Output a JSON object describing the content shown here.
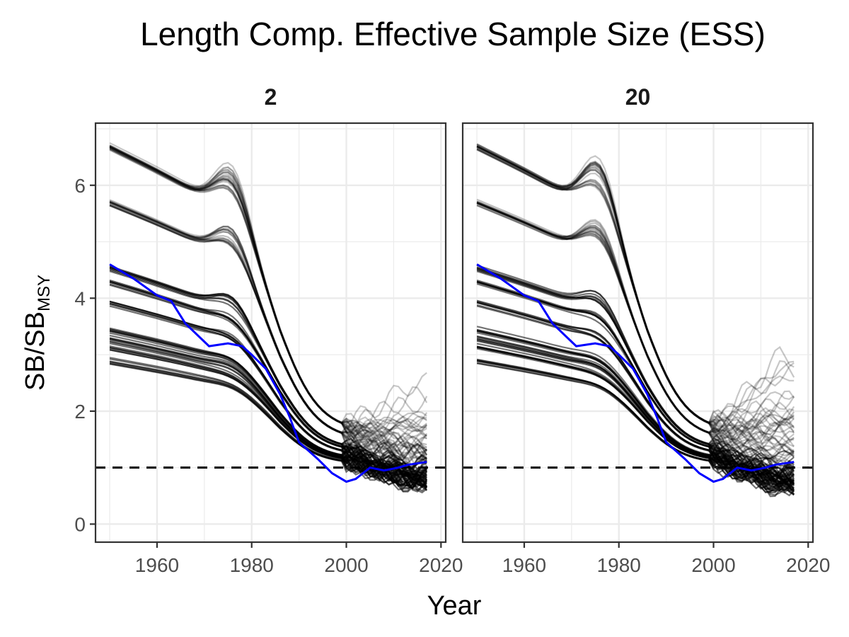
{
  "chart_data": {
    "type": "line",
    "title": "Length Comp. Effective Sample Size (ESS)",
    "xlabel": "Year",
    "ylabel": {
      "main": "SB/SB",
      "subscript": "MSY"
    },
    "xlim": [
      1947,
      2021
    ],
    "ylim": [
      -0.32,
      7.1
    ],
    "xticks": [
      1960,
      1980,
      2000,
      2020
    ],
    "yticks": [
      0,
      2,
      4,
      6
    ],
    "reference_line": {
      "y": 1.0,
      "style": "dashed",
      "color": "#000000"
    },
    "grid": true,
    "legend": "none",
    "panels": [
      {
        "label": "2",
        "highlight": {
          "color": "#0000ff",
          "x": [
            1950,
            1955,
            1960,
            1963,
            1966,
            1971,
            1975,
            1978,
            1980,
            1983,
            1986,
            1988,
            1990,
            1994,
            1997,
            2000,
            2002,
            2005,
            2008,
            2011,
            2013,
            2017
          ],
          "y": [
            4.6,
            4.35,
            4.05,
            3.95,
            3.55,
            3.15,
            3.2,
            3.15,
            3.0,
            2.75,
            2.3,
            1.9,
            1.45,
            1.15,
            0.9,
            0.75,
            0.8,
            1.0,
            0.95,
            1.0,
            1.05,
            1.1
          ]
        },
        "bundles": [
          {
            "start": 6.75,
            "end": 1.2,
            "spread": 1.4,
            "count": 25,
            "opacity": 0.22,
            "hump": 0.9
          },
          {
            "start": 5.75,
            "end": 0.9,
            "spread": 0.9,
            "count": 18,
            "opacity": 0.25,
            "hump": 0.6
          },
          {
            "start": 4.6,
            "end": 0.8,
            "spread": 0.5,
            "count": 8,
            "opacity": 0.55,
            "hump": 0.35
          },
          {
            "start": 4.35,
            "end": 0.75,
            "spread": 0.45,
            "count": 7,
            "opacity": 0.55,
            "hump": 0.2
          },
          {
            "start": 3.98,
            "end": 0.7,
            "spread": 0.4,
            "count": 7,
            "opacity": 0.55,
            "hump": 0.15
          },
          {
            "start": 3.5,
            "end": 0.7,
            "spread": 0.35,
            "count": 7,
            "opacity": 0.55,
            "hump": 0.1
          },
          {
            "start": 3.35,
            "end": 0.7,
            "spread": 0.35,
            "count": 7,
            "opacity": 0.55,
            "hump": 0.1
          },
          {
            "start": 3.2,
            "end": 0.65,
            "spread": 0.3,
            "count": 7,
            "opacity": 0.55,
            "hump": 0.05
          },
          {
            "start": 2.95,
            "end": 0.65,
            "spread": 0.3,
            "count": 7,
            "opacity": 0.55,
            "hump": 0.05
          }
        ]
      },
      {
        "label": "20",
        "highlight": {
          "color": "#0000ff",
          "x": [
            1950,
            1955,
            1960,
            1963,
            1966,
            1971,
            1975,
            1978,
            1980,
            1983,
            1986,
            1988,
            1990,
            1994,
            1997,
            2000,
            2002,
            2005,
            2008,
            2011,
            2013,
            2017
          ],
          "y": [
            4.6,
            4.35,
            4.05,
            3.95,
            3.55,
            3.15,
            3.2,
            3.15,
            3.0,
            2.75,
            2.3,
            1.9,
            1.45,
            1.15,
            0.9,
            0.75,
            0.8,
            1.0,
            0.95,
            1.0,
            1.05,
            1.1
          ]
        },
        "bundles": [
          {
            "start": 6.75,
            "end": 1.3,
            "spread": 2.2,
            "count": 25,
            "opacity": 0.22,
            "hump": 1.0
          },
          {
            "start": 5.75,
            "end": 0.9,
            "spread": 1.2,
            "count": 18,
            "opacity": 0.25,
            "hump": 0.7
          },
          {
            "start": 4.6,
            "end": 0.75,
            "spread": 0.6,
            "count": 8,
            "opacity": 0.55,
            "hump": 0.35
          },
          {
            "start": 4.35,
            "end": 0.7,
            "spread": 0.5,
            "count": 7,
            "opacity": 0.55,
            "hump": 0.2
          },
          {
            "start": 3.98,
            "end": 0.65,
            "spread": 0.45,
            "count": 7,
            "opacity": 0.55,
            "hump": 0.15
          },
          {
            "start": 3.5,
            "end": 0.65,
            "spread": 0.4,
            "count": 7,
            "opacity": 0.55,
            "hump": 0.1
          },
          {
            "start": 3.35,
            "end": 0.6,
            "spread": 0.35,
            "count": 7,
            "opacity": 0.55,
            "hump": 0.1
          },
          {
            "start": 3.2,
            "end": 0.6,
            "spread": 0.35,
            "count": 7,
            "opacity": 0.55,
            "hump": 0.05
          },
          {
            "start": 2.95,
            "end": 0.55,
            "spread": 0.3,
            "count": 7,
            "opacity": 0.55,
            "hump": 0.05
          }
        ]
      }
    ]
  }
}
